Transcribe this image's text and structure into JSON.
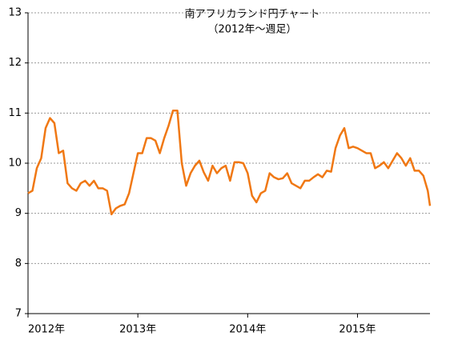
{
  "chart_data": {
    "type": "line",
    "title": "南アフリカランド円チャート",
    "subtitle": "（2012年～週足）",
    "x": [
      2012.0,
      2012.04,
      2012.08,
      2012.12,
      2012.16,
      2012.2,
      2012.24,
      2012.28,
      2012.32,
      2012.36,
      2012.4,
      2012.44,
      2012.48,
      2012.52,
      2012.56,
      2012.6,
      2012.64,
      2012.68,
      2012.72,
      2012.76,
      2012.8,
      2012.84,
      2012.88,
      2012.92,
      2012.96,
      2013.0,
      2013.04,
      2013.08,
      2013.12,
      2013.16,
      2013.2,
      2013.24,
      2013.28,
      2013.32,
      2013.36,
      2013.4,
      2013.44,
      2013.48,
      2013.52,
      2013.56,
      2013.6,
      2013.64,
      2013.68,
      2013.72,
      2013.76,
      2013.8,
      2013.84,
      2013.88,
      2013.92,
      2013.96,
      2014.0,
      2014.04,
      2014.08,
      2014.12,
      2014.16,
      2014.2,
      2014.24,
      2014.28,
      2014.32,
      2014.36,
      2014.4,
      2014.44,
      2014.48,
      2014.52,
      2014.56,
      2014.6,
      2014.64,
      2014.68,
      2014.72,
      2014.76,
      2014.8,
      2014.84,
      2014.88,
      2014.92,
      2014.96,
      2015.0,
      2015.04,
      2015.08,
      2015.12,
      2015.16,
      2015.2,
      2015.24,
      2015.28,
      2015.32,
      2015.36,
      2015.4,
      2015.44,
      2015.48,
      2015.52,
      2015.56,
      2015.6,
      2015.64,
      2015.66
    ],
    "series": [
      {
        "color": "#f07814",
        "values": [
          9.4,
          9.45,
          9.9,
          10.1,
          10.7,
          10.9,
          10.8,
          10.2,
          10.25,
          9.6,
          9.5,
          9.45,
          9.6,
          9.65,
          9.55,
          9.65,
          9.5,
          9.5,
          9.45,
          8.98,
          9.1,
          9.15,
          9.18,
          9.4,
          9.8,
          10.2,
          10.2,
          10.5,
          10.5,
          10.45,
          10.2,
          10.5,
          10.75,
          11.05,
          11.05,
          10.0,
          9.55,
          9.8,
          9.95,
          10.05,
          9.82,
          9.65,
          9.95,
          9.8,
          9.9,
          9.95,
          9.65,
          10.02,
          10.02,
          10.0,
          9.8,
          9.35,
          9.22,
          9.4,
          9.45,
          9.8,
          9.72,
          9.68,
          9.7,
          9.8,
          9.6,
          9.55,
          9.5,
          9.65,
          9.65,
          9.72,
          9.78,
          9.72,
          9.85,
          9.83,
          10.3,
          10.55,
          10.7,
          10.3,
          10.33,
          10.3,
          10.25,
          10.2,
          10.2,
          9.9,
          9.95,
          10.02,
          9.9,
          10.05,
          10.2,
          10.1,
          9.95,
          10.1,
          9.85,
          9.85,
          9.75,
          9.45,
          9.15
        ]
      }
    ],
    "xlim": [
      2012,
      2015.66
    ],
    "xticks": [
      {
        "value": 2012,
        "label": "2012年"
      },
      {
        "value": 2013,
        "label": "2013年"
      },
      {
        "value": 2014,
        "label": "2014年"
      },
      {
        "value": 2015,
        "label": "2015年"
      }
    ],
    "ylim": [
      7,
      13
    ],
    "yticks": [
      7,
      8,
      9,
      10,
      11,
      12,
      13
    ],
    "grid": true
  }
}
